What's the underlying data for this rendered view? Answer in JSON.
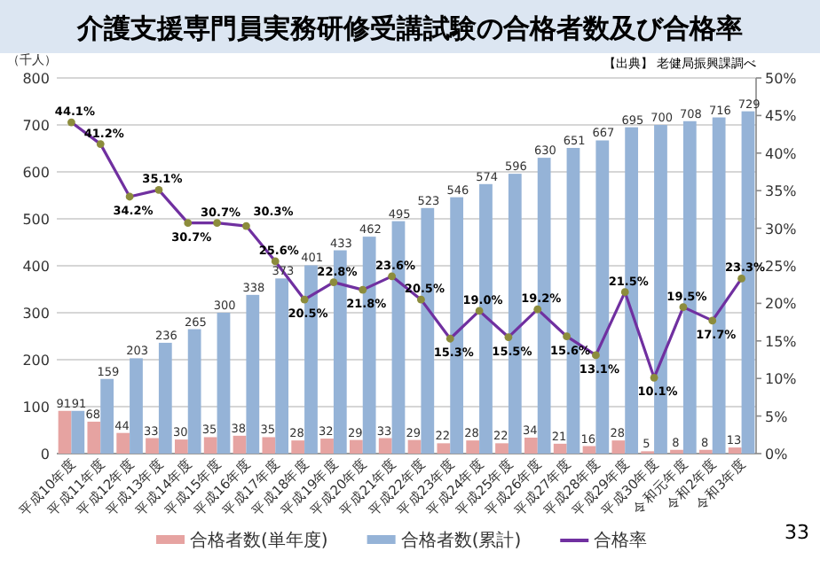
{
  "chart_data": {
    "type": "bar",
    "title": "介護支援専門員実務研修受講試験の合格者数及び合格率",
    "ylabel": "（千人）",
    "annotations": [
      "【出典】 老健局振興課調べ",
      "33"
    ],
    "categories": [
      "平成10年度",
      "平成11年度",
      "平成12年度",
      "平成13年度",
      "平成14年度",
      "平成15年度",
      "平成16年度",
      "平成17年度",
      "平成18年度",
      "平成19年度",
      "平成20年度",
      "平成21年度",
      "平成22年度",
      "平成23年度",
      "平成24年度",
      "平成25年度",
      "平成26年度",
      "平成27年度",
      "平成28年度",
      "平成29年度",
      "平成30年度",
      "令和元年度",
      "令和2年度",
      "令和3年度"
    ],
    "series": [
      {
        "name": "合格者数(単年度)",
        "type": "bar",
        "color": "#e6a3a1",
        "values": [
          91,
          68,
          44,
          33,
          30,
          35,
          38,
          35,
          28,
          32,
          29,
          33,
          29,
          22,
          28,
          22,
          34,
          21,
          16,
          28,
          5,
          8,
          8,
          13
        ]
      },
      {
        "name": "合格者数(累計)",
        "type": "bar",
        "color": "#95b3d7",
        "values": [
          91,
          159,
          203,
          236,
          265,
          300,
          338,
          373,
          401,
          433,
          462,
          495,
          523,
          546,
          574,
          596,
          630,
          651,
          667,
          695,
          700,
          708,
          716,
          729
        ]
      },
      {
        "name": "合格率",
        "type": "line",
        "axis": "y2",
        "color": "#7030a0",
        "values": [
          44.1,
          41.2,
          34.2,
          35.1,
          30.7,
          30.7,
          30.3,
          25.6,
          20.5,
          22.8,
          21.8,
          23.6,
          20.5,
          15.3,
          19.0,
          15.5,
          19.2,
          15.6,
          13.1,
          21.5,
          10.1,
          19.5,
          17.7,
          23.3
        ],
        "value_labels": [
          "44.1%",
          "41.2%",
          "34.2%",
          "35.1%",
          "30.7%",
          "30.7%",
          "30.3%",
          "25.6%",
          "20.5%",
          "22.8%",
          "21.8%",
          "23.6%",
          "20.5%",
          "15.3%",
          "19.0%",
          "15.5%",
          "19.2%",
          "15.6%",
          "13.1%",
          "21.5%",
          "10.1%",
          "19.5%",
          "17.7%",
          "23.3%"
        ]
      }
    ],
    "ylim": [
      0,
      800
    ],
    "yticks": [
      0,
      100,
      200,
      300,
      400,
      500,
      600,
      700,
      800
    ],
    "y2lim": [
      0,
      50
    ],
    "y2ticks": [
      {
        "value": 0,
        "label": "0%"
      },
      {
        "value": 5,
        "label": "5%"
      },
      {
        "value": 10,
        "label": "10%"
      },
      {
        "value": 15,
        "label": "15%"
      },
      {
        "value": 20,
        "label": "20%"
      },
      {
        "value": 25,
        "label": "25%"
      },
      {
        "value": 30,
        "label": "30%"
      },
      {
        "value": 35,
        "label": "35%"
      },
      {
        "value": 40,
        "label": "40%"
      },
      {
        "value": 45,
        "label": "45%"
      },
      {
        "value": 50,
        "label": "50%"
      }
    ],
    "grid": "y",
    "legend": "bottom",
    "data_labels": true,
    "marker": "circle",
    "line_style": "solid"
  }
}
